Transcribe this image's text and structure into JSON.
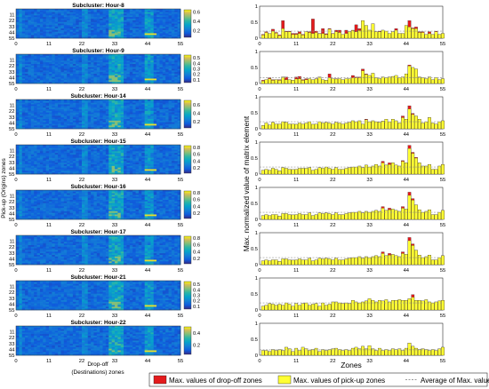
{
  "chart_data": [
    {
      "type": "heatmap",
      "panels": [
        {
          "title": "Subcluster: Hour-8",
          "cbar_ticks": [
            0.2,
            0.4,
            0.6
          ],
          "cbar_range": [
            0.05,
            0.65
          ]
        },
        {
          "title": "Subcluster: Hour-9",
          "cbar_ticks": [
            0.1,
            0.2,
            0.3,
            0.4,
            0.5
          ],
          "cbar_range": [
            0.05,
            0.55
          ]
        },
        {
          "title": "Subcluster: Hour-14",
          "cbar_ticks": [
            0.2,
            0.4,
            0.6
          ],
          "cbar_range": [
            0.05,
            0.7
          ]
        },
        {
          "title": "Subcluster: Hour-15",
          "cbar_ticks": [
            0.2,
            0.4,
            0.6,
            0.8
          ],
          "cbar_range": [
            0.05,
            0.85
          ]
        },
        {
          "title": "Subcluster: Hour-16",
          "cbar_ticks": [
            0.2,
            0.4,
            0.6,
            0.8
          ],
          "cbar_range": [
            0.05,
            0.85
          ]
        },
        {
          "title": "Subcluster: Hour-17",
          "cbar_ticks": [
            0.2,
            0.4,
            0.6,
            0.8
          ],
          "cbar_range": [
            0.05,
            0.85
          ]
        },
        {
          "title": "Subcluster: Hour-21",
          "cbar_ticks": [
            0.1,
            0.2,
            0.3,
            0.4,
            0.5
          ],
          "cbar_range": [
            0.05,
            0.55
          ]
        },
        {
          "title": "Subcluster: Hour-22",
          "cbar_ticks": [
            0.2,
            0.4
          ],
          "cbar_range": [
            0.05,
            0.5
          ]
        }
      ],
      "x_ticks": [
        0,
        11,
        22,
        33,
        44,
        55
      ],
      "y_ticks": [
        0,
        11,
        22,
        33,
        44,
        55
      ],
      "xlim": [
        0,
        55
      ],
      "ylim": [
        0,
        55
      ],
      "ylabel": "Pick-up (Origins) zones",
      "xlabel_line1": "Drop-off",
      "xlabel_line2": "(Destinations) zones"
    },
    {
      "type": "bar",
      "stacked_overlay": true,
      "x_ticks": [
        0,
        11,
        22,
        33,
        44,
        55
      ],
      "xlim": [
        0,
        55
      ],
      "ylim": [
        0,
        1
      ],
      "y_ticks": [
        0,
        0.5,
        1
      ],
      "xlabel": "Zones",
      "ylabel": "Max. normalized value of matrix element",
      "legend": {
        "position": "bottom",
        "entries": [
          {
            "label": "Max. values of drop-off zones",
            "color": "#e31a1c"
          },
          {
            "label": "Max. values of pick-up zones",
            "color": "#ffff33"
          },
          {
            "label": "Average of Max. values",
            "color": "#999999"
          }
        ]
      },
      "panels": [
        {
          "avg": 0.22,
          "pickup": [
            0.1,
            0.18,
            0.15,
            0.22,
            0.16,
            0.08,
            0.3,
            0.2,
            0.2,
            0.12,
            0.12,
            0.15,
            0.1,
            0.2,
            0.18,
            0.15,
            0.18,
            0.14,
            0.15,
            0.12,
            0.28,
            0.14,
            0.2,
            0.18,
            0.12,
            0.15,
            0.2,
            0.24,
            0.2,
            0.24,
            0.55,
            0.4,
            0.25,
            0.45,
            0.2,
            0.2,
            0.25,
            0.22,
            0.15,
            0.2,
            0.25,
            0.15,
            0.15,
            0.4,
            0.35,
            0.3,
            0.3,
            0.18,
            0.18,
            0.12,
            0.15,
            0.12,
            0.2,
            0.12,
            0.15
          ],
          "dropoff": [
            0.12,
            0.2,
            0.15,
            0.28,
            0.18,
            0.1,
            0.55,
            0.22,
            0.22,
            0.15,
            0.15,
            0.2,
            0.12,
            0.2,
            0.2,
            0.6,
            0.22,
            0.15,
            0.3,
            0.14,
            0.3,
            0.15,
            0.25,
            0.25,
            0.12,
            0.25,
            0.2,
            0.25,
            0.42,
            0.3,
            0.55,
            0.4,
            0.25,
            0.45,
            0.2,
            0.22,
            0.25,
            0.22,
            0.15,
            0.2,
            0.3,
            0.15,
            0.15,
            0.4,
            0.55,
            0.32,
            0.35,
            0.2,
            0.2,
            0.12,
            0.2,
            0.12,
            0.22,
            0.12,
            0.15
          ]
        },
        {
          "avg": 0.18,
          "pickup": [
            0.08,
            0.12,
            0.15,
            0.1,
            0.12,
            0.1,
            0.2,
            0.12,
            0.12,
            0.1,
            0.14,
            0.15,
            0.1,
            0.12,
            0.15,
            0.12,
            0.14,
            0.2,
            0.12,
            0.1,
            0.18,
            0.15,
            0.14,
            0.15,
            0.12,
            0.15,
            0.15,
            0.18,
            0.18,
            0.18,
            0.4,
            0.28,
            0.25,
            0.32,
            0.18,
            0.15,
            0.2,
            0.18,
            0.2,
            0.22,
            0.25,
            0.18,
            0.2,
            0.3,
            0.55,
            0.5,
            0.45,
            0.2,
            0.18,
            0.15,
            0.2,
            0.12,
            0.18,
            0.12,
            0.15
          ],
          "dropoff": [
            0.1,
            0.12,
            0.18,
            0.12,
            0.12,
            0.12,
            0.2,
            0.2,
            0.12,
            0.1,
            0.2,
            0.22,
            0.12,
            0.15,
            0.15,
            0.12,
            0.15,
            0.2,
            0.12,
            0.1,
            0.3,
            0.15,
            0.15,
            0.15,
            0.12,
            0.15,
            0.15,
            0.25,
            0.2,
            0.2,
            0.45,
            0.3,
            0.25,
            0.32,
            0.18,
            0.15,
            0.2,
            0.18,
            0.2,
            0.22,
            0.25,
            0.18,
            0.2,
            0.3,
            0.58,
            0.5,
            0.45,
            0.2,
            0.18,
            0.15,
            0.2,
            0.12,
            0.18,
            0.12,
            0.15
          ]
        },
        {
          "avg": 0.22,
          "pickup": [
            0.1,
            0.18,
            0.12,
            0.2,
            0.15,
            0.15,
            0.22,
            0.2,
            0.15,
            0.15,
            0.14,
            0.18,
            0.15,
            0.18,
            0.22,
            0.14,
            0.15,
            0.22,
            0.18,
            0.2,
            0.18,
            0.15,
            0.2,
            0.18,
            0.15,
            0.18,
            0.2,
            0.25,
            0.22,
            0.25,
            0.15,
            0.28,
            0.22,
            0.25,
            0.22,
            0.2,
            0.24,
            0.3,
            0.22,
            0.3,
            0.25,
            0.18,
            0.35,
            0.3,
            0.62,
            0.45,
            0.4,
            0.3,
            0.18,
            0.22,
            0.35,
            0.18,
            0.15,
            0.22,
            0.25
          ],
          "dropoff": [
            0.1,
            0.18,
            0.12,
            0.2,
            0.15,
            0.15,
            0.22,
            0.2,
            0.15,
            0.15,
            0.14,
            0.18,
            0.15,
            0.18,
            0.22,
            0.14,
            0.15,
            0.22,
            0.18,
            0.2,
            0.18,
            0.15,
            0.2,
            0.18,
            0.15,
            0.18,
            0.2,
            0.25,
            0.22,
            0.25,
            0.15,
            0.3,
            0.22,
            0.25,
            0.22,
            0.2,
            0.24,
            0.3,
            0.22,
            0.3,
            0.25,
            0.18,
            0.4,
            0.3,
            0.72,
            0.48,
            0.4,
            0.3,
            0.18,
            0.22,
            0.35,
            0.18,
            0.15,
            0.22,
            0.25
          ]
        },
        {
          "avg": 0.22,
          "pickup": [
            0.12,
            0.15,
            0.12,
            0.18,
            0.15,
            0.1,
            0.2,
            0.18,
            0.15,
            0.14,
            0.15,
            0.18,
            0.18,
            0.18,
            0.2,
            0.12,
            0.15,
            0.2,
            0.18,
            0.22,
            0.18,
            0.15,
            0.2,
            0.15,
            0.15,
            0.18,
            0.2,
            0.22,
            0.22,
            0.25,
            0.2,
            0.28,
            0.22,
            0.25,
            0.3,
            0.25,
            0.35,
            0.28,
            0.3,
            0.35,
            0.28,
            0.25,
            0.4,
            0.35,
            0.8,
            0.65,
            0.5,
            0.35,
            0.25,
            0.25,
            0.3,
            0.15,
            0.15,
            0.25,
            0.3
          ],
          "dropoff": [
            0.12,
            0.15,
            0.12,
            0.18,
            0.15,
            0.1,
            0.2,
            0.18,
            0.15,
            0.14,
            0.15,
            0.18,
            0.18,
            0.18,
            0.2,
            0.12,
            0.15,
            0.2,
            0.18,
            0.22,
            0.18,
            0.15,
            0.2,
            0.15,
            0.15,
            0.18,
            0.2,
            0.22,
            0.22,
            0.25,
            0.2,
            0.28,
            0.22,
            0.25,
            0.3,
            0.25,
            0.4,
            0.28,
            0.35,
            0.35,
            0.28,
            0.25,
            0.42,
            0.35,
            0.9,
            0.68,
            0.52,
            0.35,
            0.25,
            0.25,
            0.3,
            0.15,
            0.15,
            0.25,
            0.3
          ]
        },
        {
          "avg": 0.22,
          "pickup": [
            0.12,
            0.15,
            0.12,
            0.15,
            0.15,
            0.1,
            0.18,
            0.18,
            0.15,
            0.14,
            0.15,
            0.18,
            0.15,
            0.15,
            0.2,
            0.12,
            0.15,
            0.2,
            0.18,
            0.2,
            0.18,
            0.15,
            0.2,
            0.15,
            0.15,
            0.18,
            0.2,
            0.22,
            0.22,
            0.25,
            0.2,
            0.25,
            0.22,
            0.25,
            0.28,
            0.25,
            0.35,
            0.28,
            0.3,
            0.32,
            0.28,
            0.25,
            0.35,
            0.32,
            0.75,
            0.6,
            0.45,
            0.3,
            0.22,
            0.25,
            0.3,
            0.15,
            0.15,
            0.22,
            0.28
          ],
          "dropoff": [
            0.12,
            0.15,
            0.12,
            0.15,
            0.15,
            0.1,
            0.18,
            0.18,
            0.15,
            0.14,
            0.15,
            0.18,
            0.15,
            0.15,
            0.2,
            0.12,
            0.15,
            0.2,
            0.18,
            0.2,
            0.18,
            0.15,
            0.2,
            0.15,
            0.15,
            0.18,
            0.2,
            0.22,
            0.22,
            0.25,
            0.2,
            0.25,
            0.22,
            0.25,
            0.28,
            0.25,
            0.4,
            0.28,
            0.35,
            0.32,
            0.28,
            0.25,
            0.4,
            0.32,
            0.85,
            0.65,
            0.45,
            0.3,
            0.22,
            0.25,
            0.3,
            0.15,
            0.15,
            0.22,
            0.28
          ]
        },
        {
          "avg": 0.22,
          "pickup": [
            0.12,
            0.15,
            0.12,
            0.15,
            0.15,
            0.1,
            0.18,
            0.18,
            0.15,
            0.14,
            0.15,
            0.18,
            0.15,
            0.15,
            0.2,
            0.12,
            0.15,
            0.2,
            0.18,
            0.2,
            0.18,
            0.15,
            0.2,
            0.15,
            0.15,
            0.18,
            0.2,
            0.22,
            0.22,
            0.25,
            0.2,
            0.25,
            0.22,
            0.25,
            0.28,
            0.25,
            0.35,
            0.28,
            0.3,
            0.32,
            0.28,
            0.25,
            0.35,
            0.32,
            0.75,
            0.6,
            0.45,
            0.3,
            0.22,
            0.25,
            0.3,
            0.15,
            0.15,
            0.22,
            0.28
          ],
          "dropoff": [
            0.12,
            0.15,
            0.12,
            0.15,
            0.15,
            0.1,
            0.18,
            0.18,
            0.15,
            0.14,
            0.15,
            0.18,
            0.15,
            0.15,
            0.2,
            0.12,
            0.15,
            0.2,
            0.18,
            0.2,
            0.18,
            0.15,
            0.2,
            0.15,
            0.15,
            0.18,
            0.2,
            0.22,
            0.22,
            0.25,
            0.2,
            0.25,
            0.22,
            0.25,
            0.28,
            0.25,
            0.4,
            0.28,
            0.35,
            0.32,
            0.28,
            0.25,
            0.4,
            0.32,
            0.85,
            0.65,
            0.45,
            0.3,
            0.22,
            0.25,
            0.3,
            0.15,
            0.15,
            0.22,
            0.28
          ]
        },
        {
          "avg": 0.22,
          "pickup": [
            0.12,
            0.15,
            0.2,
            0.18,
            0.15,
            0.18,
            0.15,
            0.22,
            0.18,
            0.12,
            0.2,
            0.15,
            0.2,
            0.22,
            0.15,
            0.18,
            0.2,
            0.12,
            0.22,
            0.15,
            0.18,
            0.25,
            0.25,
            0.22,
            0.2,
            0.22,
            0.2,
            0.3,
            0.25,
            0.22,
            0.25,
            0.28,
            0.35,
            0.3,
            0.25,
            0.3,
            0.28,
            0.32,
            0.25,
            0.3,
            0.3,
            0.32,
            0.3,
            0.3,
            0.35,
            0.4,
            0.3,
            0.3,
            0.28,
            0.32,
            0.25,
            0.22,
            0.25,
            0.28,
            0.3
          ],
          "dropoff": [
            0.12,
            0.15,
            0.2,
            0.18,
            0.15,
            0.18,
            0.15,
            0.22,
            0.18,
            0.12,
            0.2,
            0.15,
            0.2,
            0.22,
            0.15,
            0.18,
            0.2,
            0.12,
            0.22,
            0.15,
            0.18,
            0.25,
            0.25,
            0.22,
            0.2,
            0.22,
            0.2,
            0.3,
            0.25,
            0.22,
            0.25,
            0.28,
            0.35,
            0.3,
            0.25,
            0.3,
            0.28,
            0.32,
            0.25,
            0.3,
            0.3,
            0.32,
            0.3,
            0.3,
            0.35,
            0.48,
            0.3,
            0.3,
            0.28,
            0.32,
            0.25,
            0.22,
            0.25,
            0.28,
            0.3
          ]
        },
        {
          "avg": 0.17,
          "pickup": [
            0.15,
            0.15,
            0.12,
            0.18,
            0.15,
            0.18,
            0.15,
            0.25,
            0.2,
            0.12,
            0.22,
            0.15,
            0.25,
            0.2,
            0.15,
            0.18,
            0.22,
            0.12,
            0.18,
            0.15,
            0.18,
            0.2,
            0.22,
            0.18,
            0.15,
            0.18,
            0.15,
            0.22,
            0.25,
            0.2,
            0.28,
            0.2,
            0.3,
            0.2,
            0.15,
            0.22,
            0.15,
            0.18,
            0.15,
            0.2,
            0.18,
            0.2,
            0.15,
            0.22,
            0.38,
            0.28,
            0.22,
            0.18,
            0.2,
            0.18,
            0.15,
            0.18,
            0.15,
            0.2,
            0.25
          ],
          "dropoff": [
            0.15,
            0.15,
            0.12,
            0.18,
            0.15,
            0.18,
            0.15,
            0.25,
            0.2,
            0.12,
            0.22,
            0.15,
            0.25,
            0.2,
            0.15,
            0.18,
            0.22,
            0.12,
            0.18,
            0.15,
            0.18,
            0.2,
            0.22,
            0.18,
            0.15,
            0.18,
            0.15,
            0.22,
            0.25,
            0.2,
            0.28,
            0.2,
            0.3,
            0.2,
            0.15,
            0.22,
            0.15,
            0.18,
            0.15,
            0.2,
            0.18,
            0.2,
            0.15,
            0.22,
            0.38,
            0.28,
            0.22,
            0.18,
            0.2,
            0.18,
            0.15,
            0.18,
            0.15,
            0.2,
            0.25
          ]
        }
      ]
    }
  ]
}
